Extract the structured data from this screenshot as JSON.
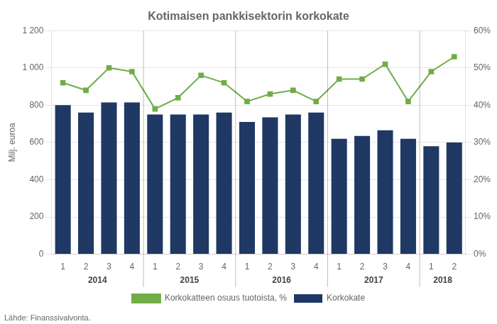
{
  "chart_data": {
    "type": "bar",
    "title": "Kotimaisen pankkisektorin korkokate",
    "ylabel": "Milj. euroa",
    "annotations": [
      "Lähde: Finanssivalvonta."
    ],
    "categories": [
      "1",
      "2",
      "3",
      "4",
      "1",
      "2",
      "3",
      "4",
      "1",
      "2",
      "3",
      "4",
      "1",
      "2",
      "3",
      "4",
      "1",
      "2"
    ],
    "category_groups": [
      {
        "name": "2014",
        "size": 4
      },
      {
        "name": "2015",
        "size": 4
      },
      {
        "name": "2016",
        "size": 4
      },
      {
        "name": "2017",
        "size": 4
      },
      {
        "name": "2018",
        "size": 2
      }
    ],
    "series": [
      {
        "name": "Korkokate",
        "type": "bar",
        "color": "#1F3864",
        "values": [
          800,
          760,
          815,
          815,
          750,
          750,
          750,
          760,
          710,
          735,
          750,
          760,
          620,
          635,
          665,
          620,
          580,
          600
        ]
      },
      {
        "name": "Korkokatteen osuus tuotoista, %",
        "type": "line",
        "axis": "y2",
        "color": "#70AD47",
        "marker": "square",
        "values": [
          46,
          44,
          50,
          49,
          39,
          42,
          48,
          46,
          41,
          43,
          44,
          41,
          47,
          47,
          51,
          41,
          49,
          53
        ]
      }
    ],
    "ylim": [
      0,
      1200
    ],
    "yticks": [
      0,
      200,
      400,
      600,
      800,
      {
        "value": 1000,
        "label": "1 000"
      },
      {
        "value": 1200,
        "label": "1 200"
      }
    ],
    "y2lim": [
      0,
      60
    ],
    "y2ticks": [
      {
        "value": 0,
        "label": "0%"
      },
      {
        "value": 10,
        "label": "10%"
      },
      {
        "value": 20,
        "label": "20%"
      },
      {
        "value": 30,
        "label": "30%"
      },
      {
        "value": 40,
        "label": "40%"
      },
      {
        "value": 50,
        "label": "50%"
      },
      {
        "value": 60,
        "label": "60%"
      }
    ],
    "grid": true,
    "legend": "bottom"
  }
}
